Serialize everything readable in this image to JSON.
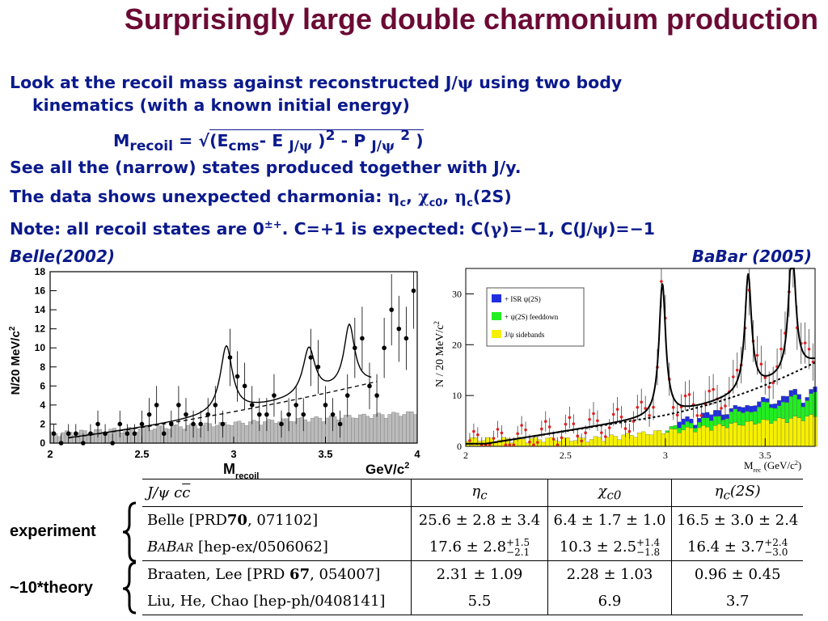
{
  "title": "Surprisingly large double charmonium production",
  "bullets": {
    "b1_line1": "Look at the recoil mass against reconstructed J/ψ using two body",
    "b1_line2": "kinematics (with a known initial energy)",
    "b2": "See all the (narrow) states produced together with J/y.",
    "b3": "The data shows unexpected charmonia: ηc, χc0, ηc(2S)",
    "b4": "Note: all recoil states are 0±+. C=+1 is expected: C(γ)=−1, C(J/ψ)=−1"
  },
  "formula": "Mrecoil = √(Ecms- E J/ψ )2 - P J/ψ 2 )",
  "captions": {
    "belle": "Belle(2002)",
    "babar": "BaBar (2005)"
  },
  "belle_plot": {
    "ylabel": "N/20 MeV/c2",
    "xlabel_main": "M",
    "xlabel_sub": "recoil",
    "xunit": "GeV/c",
    "xunit_sup": "2"
  },
  "babar_plot": {
    "ylabel": "N / 20 MeV/c2",
    "xlabel": "Mrec (GeV/c2)",
    "legend": [
      "+ ISR ψ(2S)",
      "+ ψ(2S) feeddown",
      "J/ψ sidebands"
    ]
  },
  "chart_data": [
    {
      "type": "scatter",
      "title": "Belle(2002)",
      "xlabel": "Mrecoil GeV/c2",
      "ylabel": "N/20 MeV/c2",
      "xlim": [
        2,
        4
      ],
      "ylim": [
        0,
        18
      ],
      "x_ticks": [
        2,
        2.5,
        3,
        3.5,
        4
      ],
      "y_ticks": [
        0,
        2,
        4,
        6,
        8,
        10,
        12,
        14,
        16,
        18
      ],
      "series": [
        {
          "x": [
            2.02,
            2.06,
            2.1,
            2.14,
            2.18,
            2.22,
            2.26,
            2.3,
            2.34,
            2.38,
            2.42,
            2.46,
            2.5,
            2.54,
            2.58,
            2.62,
            2.66,
            2.7,
            2.74,
            2.78,
            2.82,
            2.86,
            2.9,
            2.94,
            2.98,
            3.02,
            3.06,
            3.1,
            3.14,
            3.18,
            3.22,
            3.26,
            3.3,
            3.34,
            3.38,
            3.42,
            3.46,
            3.5,
            3.54,
            3.58,
            3.62,
            3.66,
            3.7,
            3.74,
            3.78,
            3.82,
            3.86,
            3.9,
            3.94,
            3.98
          ],
          "values": [
            1,
            0,
            1,
            1,
            0,
            1,
            2,
            1,
            0,
            2,
            1,
            1,
            2,
            3,
            4,
            1,
            2,
            4,
            3,
            2,
            2,
            3,
            4,
            2,
            9,
            7,
            6,
            4,
            3,
            3,
            5,
            2,
            3,
            4,
            3,
            9,
            8,
            4,
            3,
            2,
            5,
            10,
            11,
            6,
            5,
            10,
            14,
            12,
            11,
            16
          ]
        }
      ]
    },
    {
      "type": "line",
      "title": "BaBar (2005)",
      "xlabel": "Mrec (GeV/c2)",
      "ylabel": "N / 20 MeV/c2",
      "xlim": [
        2,
        3.75
      ],
      "ylim": [
        0,
        35
      ],
      "x_ticks": [
        2,
        2.5,
        3,
        3.5
      ],
      "y_ticks": [
        0,
        10,
        20,
        30
      ],
      "series": [
        {
          "name": "+ ISR ψ(2S)",
          "x": [
            3.1,
            3.3,
            3.5,
            3.7
          ],
          "values": [
            0.5,
            1.5,
            2,
            3
          ]
        },
        {
          "name": "+ ψ(2S) feeddown",
          "x": [
            3.1,
            3.3,
            3.5,
            3.7
          ],
          "values": [
            3,
            5,
            6,
            7
          ]
        },
        {
          "name": "J/ψ sidebands",
          "x": [
            2.0,
            2.5,
            3.0,
            3.5,
            3.7
          ],
          "values": [
            1,
            2,
            3,
            5,
            7
          ]
        }
      ]
    }
  ],
  "table": {
    "headers": [
      "J/ψ cc̄",
      "ηc",
      "χc0",
      "ηc(2S)"
    ],
    "experiment": [
      [
        "Belle [PRD70, 071102]",
        "25.6 ± 2.8 ± 3.4",
        "6.4 ± 1.7 ± 1.0",
        "16.5 ± 3.0 ± 2.4"
      ],
      [
        "BABAR [hep-ex/0506062]",
        "17.6 ± 2.8 +1.5 −2.1",
        "10.3 ± 2.5 +1.4 −1.8",
        "16.4 ± 3.7 +2.4 −3.0"
      ]
    ],
    "theory": [
      [
        "Braaten, Lee [PRD 67, 054007]",
        "2.31 ± 1.09",
        "2.28 ± 1.03",
        "0.96 ± 0.45"
      ],
      [
        "Liu, He, Chao [hep-ph/0408141]",
        "5.5",
        "6.9",
        "3.7"
      ]
    ]
  },
  "side_labels": {
    "experiment": "experiment",
    "theory": "~10*theory"
  },
  "colors": {
    "title": "#6b0a34",
    "text": "#0b1a8c",
    "isr": "#1f2fe0",
    "feeddown": "#22ee22",
    "sidebands": "#f6f000"
  }
}
